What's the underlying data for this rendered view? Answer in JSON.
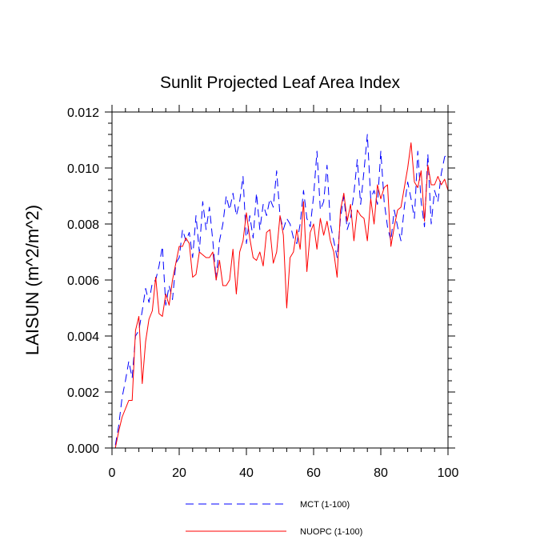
{
  "chart_data": {
    "type": "line",
    "title": "Sunlit Projected Leaf Area Index",
    "xlabel": "",
    "ylabel": "LAISUN  (m^2/m^2)",
    "xlim": [
      0,
      100
    ],
    "ylim": [
      0,
      0.012
    ],
    "x_ticks": [
      "0",
      "20",
      "40",
      "60",
      "80",
      "100"
    ],
    "x_tick_values": [
      0,
      20,
      40,
      60,
      80,
      100
    ],
    "y_ticks": [
      "0.000",
      "0.002",
      "0.004",
      "0.006",
      "0.008",
      "0.010",
      "0.012"
    ],
    "y_tick_values": [
      0,
      0.002,
      0.004,
      0.006,
      0.008,
      0.01,
      0.012
    ],
    "grid": false,
    "legend_position": "bottom-center",
    "series": [
      {
        "name": "MCT (1-100)",
        "color": "#0000ff",
        "dash": "dashed",
        "x": [
          1,
          2,
          3,
          4,
          5,
          6,
          7,
          8,
          9,
          10,
          11,
          12,
          13,
          14,
          15,
          16,
          17,
          18,
          19,
          20,
          21,
          22,
          23,
          24,
          25,
          26,
          27,
          28,
          29,
          30,
          31,
          32,
          33,
          34,
          35,
          36,
          37,
          38,
          39,
          40,
          41,
          42,
          43,
          44,
          45,
          46,
          47,
          48,
          49,
          50,
          51,
          52,
          53,
          54,
          55,
          56,
          57,
          58,
          59,
          60,
          61,
          62,
          63,
          64,
          65,
          66,
          67,
          68,
          69,
          70,
          71,
          72,
          73,
          74,
          75,
          76,
          77,
          78,
          79,
          80,
          81,
          82,
          83,
          84,
          85,
          86,
          87,
          88,
          89,
          90,
          91,
          92,
          93,
          94,
          95,
          96,
          97,
          98,
          99,
          100
        ],
        "values": [
          0.0001,
          0.0008,
          0.0018,
          0.0024,
          0.0031,
          0.0025,
          0.004,
          0.0042,
          0.0049,
          0.0057,
          0.0052,
          0.0059,
          0.006,
          0.0065,
          0.0072,
          0.0051,
          0.0058,
          0.0053,
          0.0066,
          0.0068,
          0.0078,
          0.0074,
          0.0077,
          0.0068,
          0.0083,
          0.007,
          0.0088,
          0.0078,
          0.0086,
          0.0074,
          0.006,
          0.0074,
          0.008,
          0.009,
          0.0085,
          0.0091,
          0.0083,
          0.0088,
          0.0097,
          0.0073,
          0.0083,
          0.0075,
          0.0091,
          0.0078,
          0.0087,
          0.0083,
          0.0089,
          0.0086,
          0.0099,
          0.0083,
          0.0078,
          0.0082,
          0.008,
          0.0075,
          0.0073,
          0.008,
          0.0092,
          0.0082,
          0.0079,
          0.009,
          0.0106,
          0.0085,
          0.0088,
          0.0101,
          0.008,
          0.0074,
          0.0068,
          0.0082,
          0.009,
          0.0078,
          0.0082,
          0.0091,
          0.0103,
          0.0087,
          0.0099,
          0.0112,
          0.0089,
          0.0092,
          0.0087,
          0.0106,
          0.0088,
          0.0079,
          0.0074,
          0.0085,
          0.0079,
          0.0074,
          0.0086,
          0.0095,
          0.0089,
          0.0082,
          0.0106,
          0.0088,
          0.0079,
          0.0105,
          0.008,
          0.0092,
          0.0088,
          0.0098,
          0.0104,
          0.0105
        ]
      },
      {
        "name": "NUOPC (1-100)",
        "color": "#ff0000",
        "dash": "solid",
        "x": [
          1,
          2,
          3,
          4,
          5,
          6,
          7,
          8,
          9,
          10,
          11,
          12,
          13,
          14,
          15,
          16,
          17,
          18,
          19,
          20,
          21,
          22,
          23,
          24,
          25,
          26,
          27,
          28,
          29,
          30,
          31,
          32,
          33,
          34,
          35,
          36,
          37,
          38,
          39,
          40,
          41,
          42,
          43,
          44,
          45,
          46,
          47,
          48,
          49,
          50,
          51,
          52,
          53,
          54,
          55,
          56,
          57,
          58,
          59,
          60,
          61,
          62,
          63,
          64,
          65,
          66,
          67,
          68,
          69,
          70,
          71,
          72,
          73,
          74,
          75,
          76,
          77,
          78,
          79,
          80,
          81,
          82,
          83,
          84,
          85,
          86,
          87,
          88,
          89,
          90,
          91,
          92,
          93,
          94,
          95,
          96,
          97,
          98,
          99,
          100
        ],
        "values": [
          0.0,
          0.0006,
          0.0011,
          0.0014,
          0.0017,
          0.0017,
          0.0042,
          0.0047,
          0.0023,
          0.0038,
          0.0046,
          0.0049,
          0.0061,
          0.0048,
          0.0047,
          0.0055,
          0.0051,
          0.006,
          0.0066,
          0.0072,
          0.0072,
          0.0075,
          0.0073,
          0.0061,
          0.0062,
          0.007,
          0.0069,
          0.0068,
          0.0068,
          0.007,
          0.006,
          0.0067,
          0.0058,
          0.0058,
          0.006,
          0.0071,
          0.0055,
          0.007,
          0.0074,
          0.0084,
          0.0075,
          0.0068,
          0.0067,
          0.007,
          0.0065,
          0.0077,
          0.0078,
          0.0066,
          0.007,
          0.0083,
          0.0076,
          0.005,
          0.0068,
          0.007,
          0.0078,
          0.0071,
          0.0088,
          0.0063,
          0.0077,
          0.008,
          0.0071,
          0.0082,
          0.0076,
          0.0081,
          0.0074,
          0.007,
          0.0061,
          0.0085,
          0.0091,
          0.0081,
          0.0087,
          0.0074,
          0.0085,
          0.0083,
          0.0082,
          0.0074,
          0.0089,
          0.008,
          0.0094,
          0.0089,
          0.0093,
          0.0094,
          0.0072,
          0.0079,
          0.0085,
          0.0086,
          0.0093,
          0.01,
          0.0109,
          0.0095,
          0.0093,
          0.0099,
          0.0081,
          0.0101,
          0.0094,
          0.0094,
          0.0097,
          0.0094,
          0.0096,
          0.0092
        ]
      }
    ]
  }
}
